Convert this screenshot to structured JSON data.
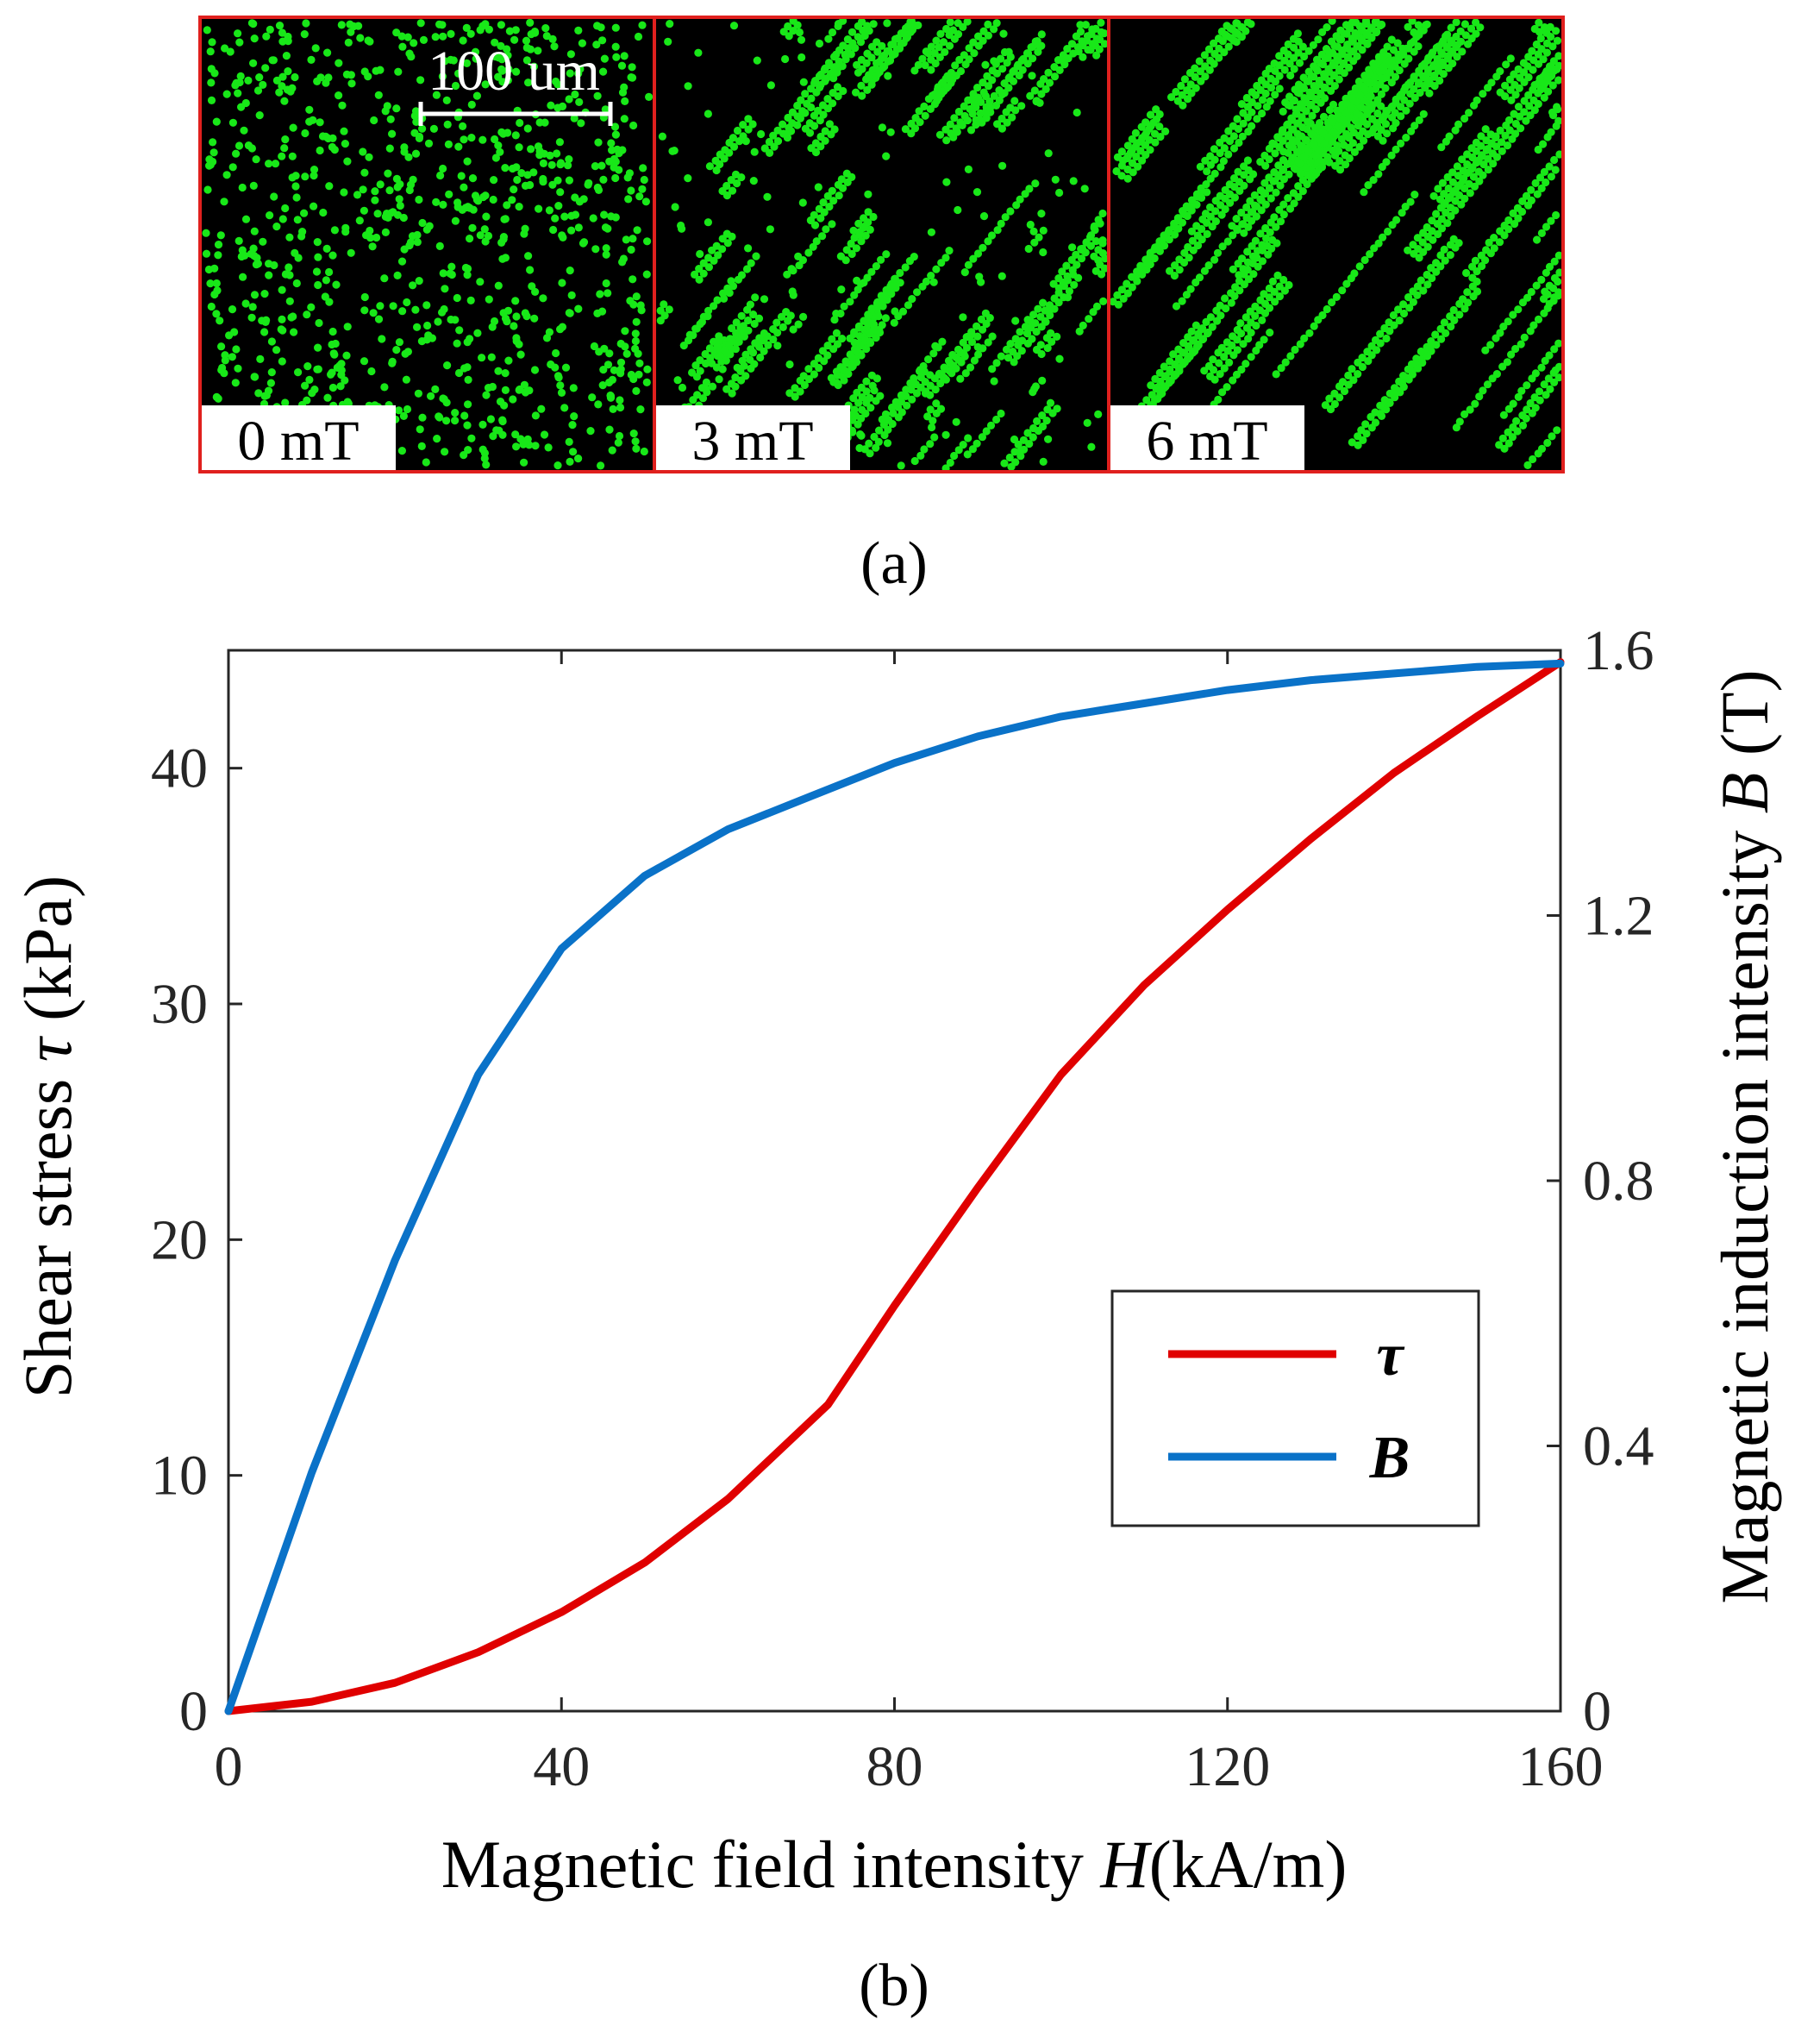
{
  "panel_a": {
    "caption": "(a)",
    "scale_bar_label": "100 um",
    "frame_color": "#e0201e",
    "particle_color": "#18e818",
    "panels": [
      {
        "label": "0 mT",
        "field_mT": 0
      },
      {
        "label": "3 mT",
        "field_mT": 3
      },
      {
        "label": "6 mT",
        "field_mT": 6
      }
    ]
  },
  "panel_b": {
    "caption": "(b)"
  },
  "chart_data": {
    "type": "line",
    "xlabel_parts": [
      "Magnetic field intensity ",
      "H",
      "(kA/m)"
    ],
    "ylabel_left_parts": [
      "Shear stress ",
      "τ",
      " (kPa)"
    ],
    "ylabel_right_parts": [
      "Magnetic induction intensity ",
      "B",
      " (T)"
    ],
    "xlim": [
      0,
      160
    ],
    "ylim_left": [
      0,
      45
    ],
    "ylim_right": [
      0,
      1.6
    ],
    "xticks": [
      0,
      40,
      80,
      120,
      160
    ],
    "xtick_labels": [
      "0",
      "40",
      "80",
      "120",
      "160"
    ],
    "yticks_left": [
      0,
      10,
      20,
      30,
      40
    ],
    "ytick_labels_left": [
      "0",
      "10",
      "20",
      "30",
      "40"
    ],
    "yticks_right": [
      0,
      0.4,
      0.8,
      1.2,
      1.6
    ],
    "ytick_labels_right": [
      "0",
      "0.4",
      "0.8",
      "1.2",
      "1.6"
    ],
    "legend_position": "center-right",
    "series": [
      {
        "name": "τ",
        "axis": "left",
        "color": "#e00000",
        "x": [
          0,
          10,
          20,
          30,
          40,
          50,
          60,
          72,
          80,
          90,
          100,
          110,
          120,
          130,
          140,
          150,
          160
        ],
        "y": [
          0,
          0.4,
          1.2,
          2.5,
          4.2,
          6.3,
          9.0,
          13.0,
          17.2,
          22.2,
          27.0,
          30.8,
          34.0,
          37.0,
          39.8,
          42.2,
          44.5
        ]
      },
      {
        "name": "B",
        "axis": "right",
        "color": "#0a72c8",
        "x": [
          0,
          10,
          20,
          30,
          40,
          50,
          60,
          70,
          80,
          90,
          100,
          110,
          120,
          130,
          140,
          150,
          160
        ],
        "y": [
          0,
          0.36,
          0.68,
          0.96,
          1.15,
          1.26,
          1.33,
          1.38,
          1.43,
          1.47,
          1.5,
          1.52,
          1.54,
          1.555,
          1.565,
          1.575,
          1.58
        ]
      }
    ]
  }
}
